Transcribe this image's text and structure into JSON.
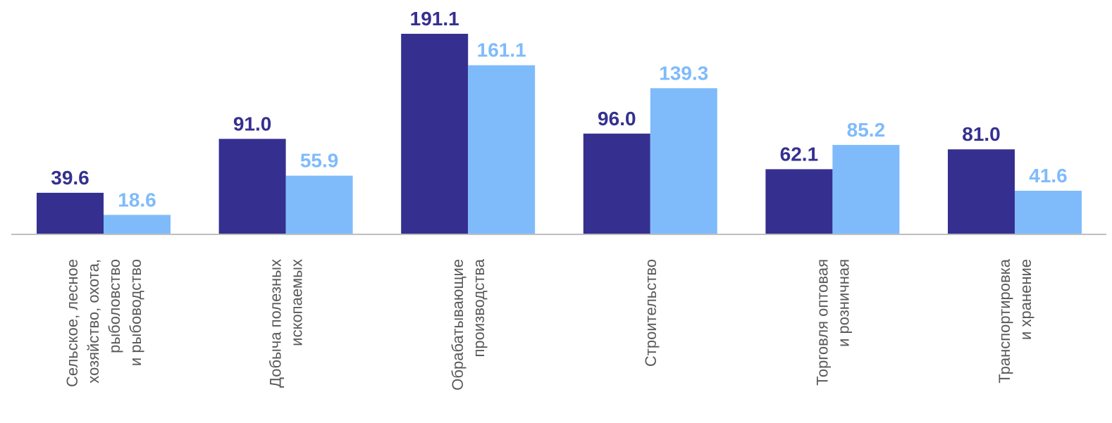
{
  "chart_data": {
    "type": "bar",
    "categories": [
      [
        "Сельское, лесное",
        "хозяйство, охота,",
        "рыболовство",
        "и рыбоводство"
      ],
      [
        "Добыча полезных",
        "ископаемых"
      ],
      [
        "Обрабатывающие",
        "производства"
      ],
      [
        "Строительство"
      ],
      [
        "Торговля оптовая",
        "и розничная"
      ],
      [
        "Транспортировка",
        "и хранение"
      ]
    ],
    "series": [
      {
        "values": [
          39.6,
          91.0,
          191.1,
          96.0,
          62.1,
          81.0
        ],
        "labels": [
          "39.6",
          "91.0",
          "191.1",
          "96.0",
          "62.1",
          "81.0"
        ],
        "color": "#35308f"
      },
      {
        "values": [
          18.6,
          55.9,
          161.1,
          139.3,
          85.2,
          41.6
        ],
        "labels": [
          "18.6",
          "55.9",
          "161.1",
          "139.3",
          "85.2",
          "41.6"
        ],
        "color": "#7fbbfb"
      }
    ],
    "title": "",
    "xlabel": "",
    "ylabel": "",
    "ylim": [
      0,
      191.1
    ],
    "grid": false,
    "legend": "none"
  }
}
